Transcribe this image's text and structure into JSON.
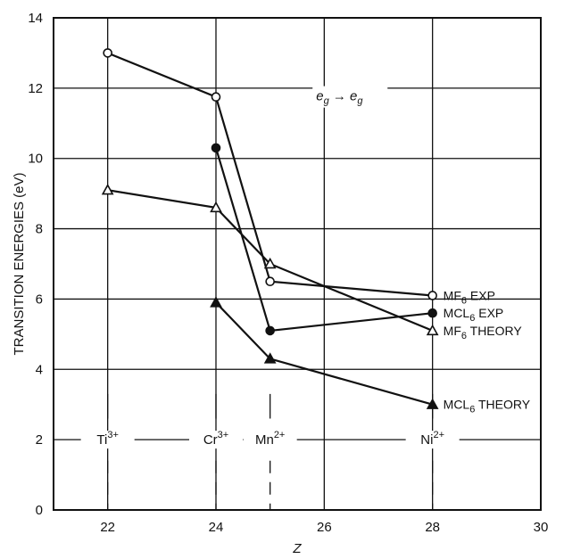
{
  "chart_data": {
    "type": "line",
    "xlabel": "Z",
    "ylabel": "TRANSITION ENERGIES (eV)",
    "xlim": [
      21,
      30
    ],
    "ylim": [
      0,
      14
    ],
    "x_ticks": [
      "22",
      "24",
      "26",
      "28",
      "30"
    ],
    "y_ticks": [
      "0",
      "2",
      "4",
      "6",
      "8",
      "10",
      "12",
      "14"
    ],
    "grid": true,
    "annotation": {
      "from": "e",
      "to": "e",
      "sub": "g"
    },
    "ions": [
      {
        "x": 22,
        "base": "Ti",
        "sup": "3+"
      },
      {
        "x": 24,
        "base": "Cr",
        "sup": "3+"
      },
      {
        "x": 25,
        "base": "Mn",
        "sup": "2+"
      },
      {
        "x": 28,
        "base": "Ni",
        "sup": "2+"
      }
    ],
    "series": [
      {
        "name_main": "MF",
        "name_sub": "6",
        "name_rest": " EXP",
        "marker": "open-circle",
        "points": [
          [
            22,
            13.0
          ],
          [
            24,
            11.75
          ],
          [
            25,
            6.5
          ],
          [
            28,
            6.1
          ]
        ]
      },
      {
        "name_main": "MCL",
        "name_sub": "6",
        "name_rest": " EXP",
        "marker": "filled-circle",
        "points": [
          [
            24,
            10.3
          ],
          [
            25,
            5.1
          ],
          [
            28,
            5.6
          ]
        ]
      },
      {
        "name_main": "MF",
        "name_sub": "6",
        "name_rest": " THEORY",
        "marker": "open-triangle",
        "points": [
          [
            22,
            9.1
          ],
          [
            24,
            8.6
          ],
          [
            25,
            7.0
          ],
          [
            28,
            5.1
          ]
        ]
      },
      {
        "name_main": "MCL",
        "name_sub": "6",
        "name_rest": " THEORY",
        "marker": "filled-triangle",
        "points": [
          [
            24,
            5.9
          ],
          [
            25,
            4.3
          ],
          [
            28,
            3.0
          ]
        ]
      }
    ]
  }
}
